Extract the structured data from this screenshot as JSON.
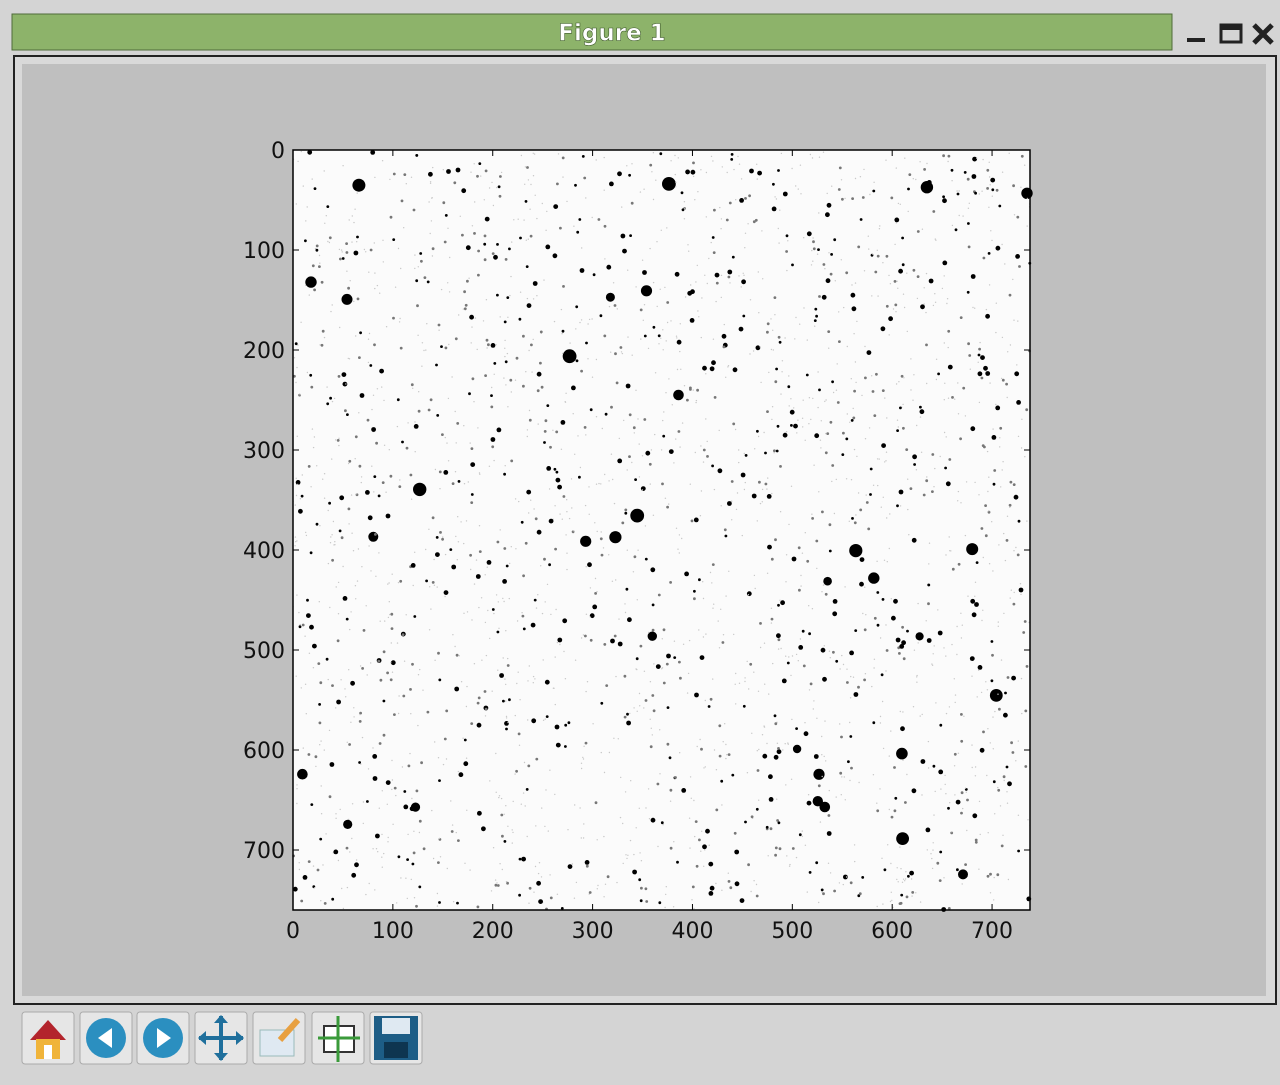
{
  "window": {
    "title": "Figure 1"
  },
  "chart_data": {
    "type": "image",
    "xlim": [
      0,
      738
    ],
    "ylim": [
      760,
      0
    ],
    "xticks": [
      0,
      100,
      200,
      300,
      400,
      500,
      600,
      700
    ],
    "yticks": [
      0,
      100,
      200,
      300,
      400,
      500,
      600,
      700
    ],
    "colormap": "gray_r"
  }
}
